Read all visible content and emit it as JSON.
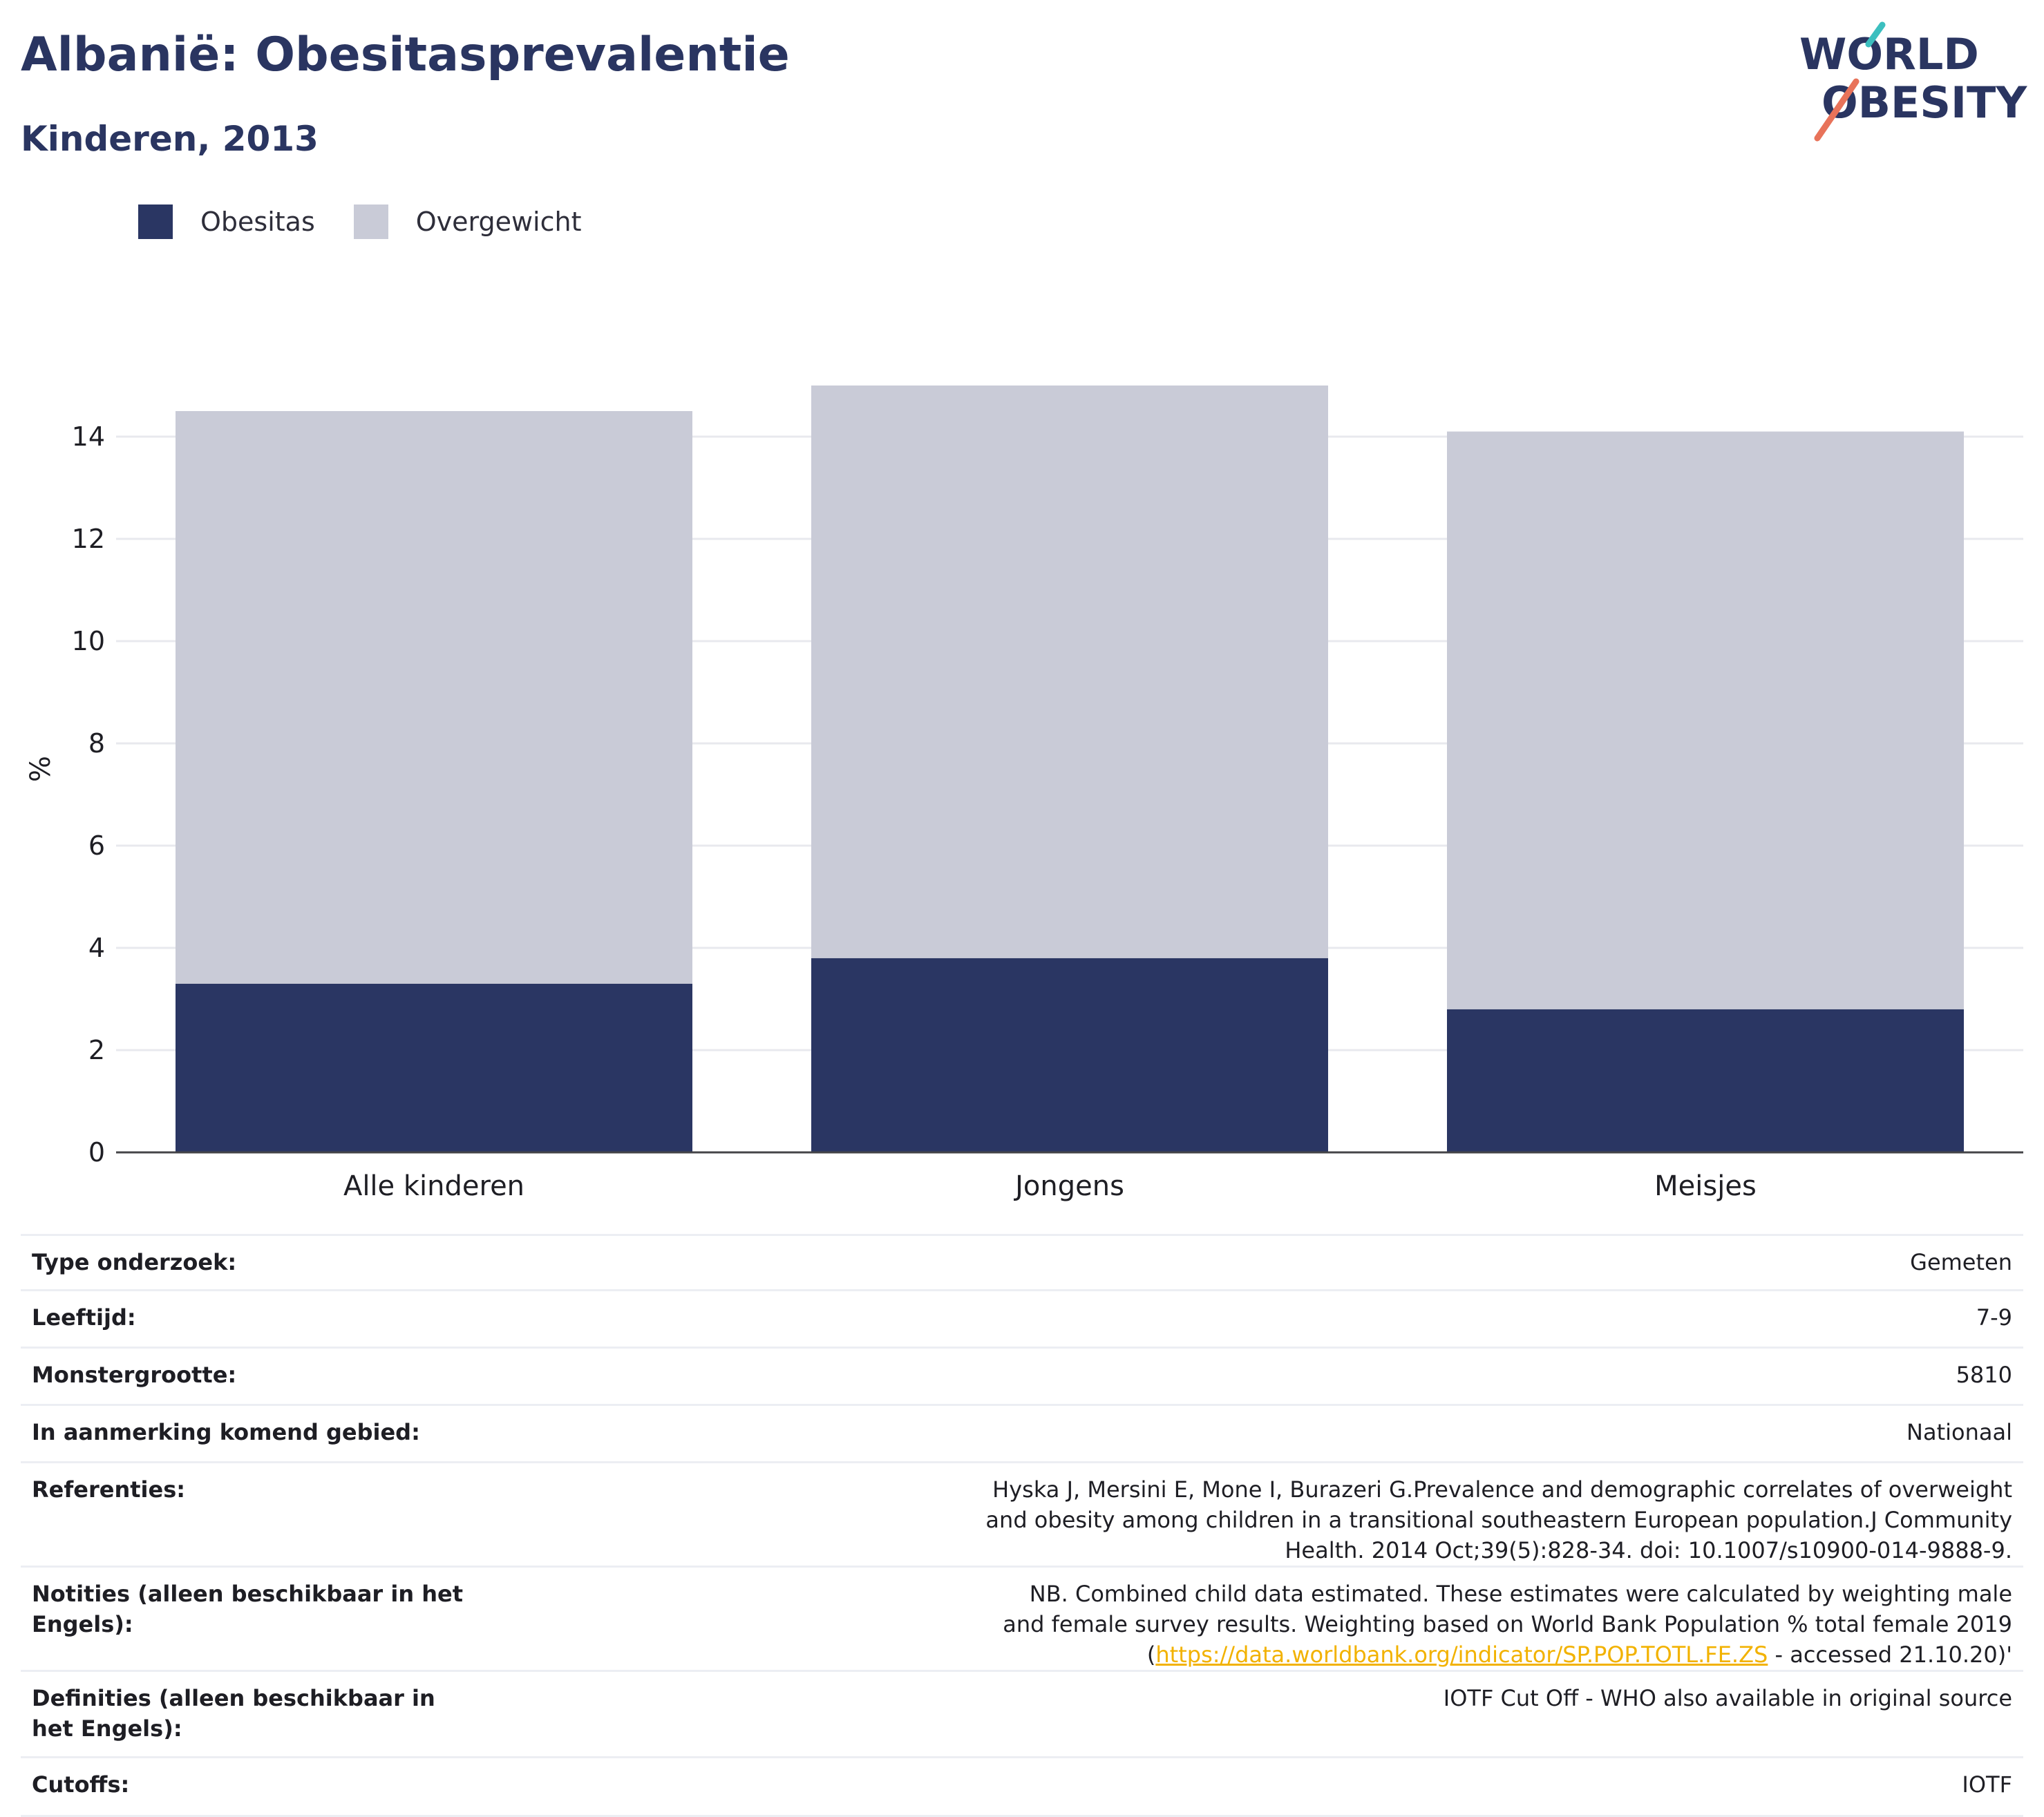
{
  "header": {
    "title": "Albanië: Obesitasprevalentie",
    "subtitle": "Kinderen, 2013"
  },
  "logo": {
    "line1": "WORLD",
    "line2": "OBESITY",
    "accent_colors": [
      "#3cbfbf",
      "#e8735a"
    ]
  },
  "legend": {
    "items": [
      {
        "label": "Obesitas",
        "color": "#2a3663"
      },
      {
        "label": "Overgewicht",
        "color": "#c9cbd7"
      }
    ]
  },
  "chart_data": {
    "type": "bar",
    "stacked": true,
    "categories": [
      "Alle kinderen",
      "Jongens",
      "Meisjes"
    ],
    "series": [
      {
        "name": "Obesitas",
        "values": [
          3.3,
          3.8,
          2.8
        ],
        "color": "#2a3663"
      },
      {
        "name": "Overgewicht",
        "values": [
          11.2,
          11.2,
          11.3
        ],
        "color": "#c9cbd7"
      }
    ],
    "title": "",
    "xlabel": "",
    "ylabel": "%",
    "ylim": [
      0,
      15
    ],
    "yticks": [
      0,
      2,
      4,
      6,
      8,
      10,
      12,
      14
    ],
    "grid": true,
    "legend_position": "top-left"
  },
  "info": {
    "rows": [
      {
        "label": "Type onderzoek:",
        "value": "Gemeten"
      },
      {
        "label": "Leeftijd:",
        "value": "7-9"
      },
      {
        "label": "Monstergrootte:",
        "value": "5810"
      },
      {
        "label": "In aanmerking komend gebied:",
        "value": "Nationaal"
      },
      {
        "label": "Referenties:",
        "value": "Hyska J, Mersini E, Mone I, Burazeri G.Prevalence and demographic correlates of overweight and obesity among children in a transitional southeastern European population.J Community Health. 2014 Oct;39(5):828-34. doi: 10.1007/s10900-014-9888-9."
      },
      {
        "label": "Notities (alleen beschikbaar in het Engels):",
        "value_pre": "NB. Combined child data estimated. These estimates were calculated by weighting male and female survey results. Weighting based on World Bank Population % total female 2019 (",
        "value_link": "https://data.worldbank.org/indicator/SP.POP.TOTL.FE.ZS",
        "value_post": " - accessed 21.10.20)'"
      },
      {
        "label": "Definities (alleen beschikbaar in het Engels):",
        "value": "IOTF Cut Off - WHO also available in original source"
      },
      {
        "label": "Cutoffs:",
        "value": "IOTF"
      }
    ]
  }
}
